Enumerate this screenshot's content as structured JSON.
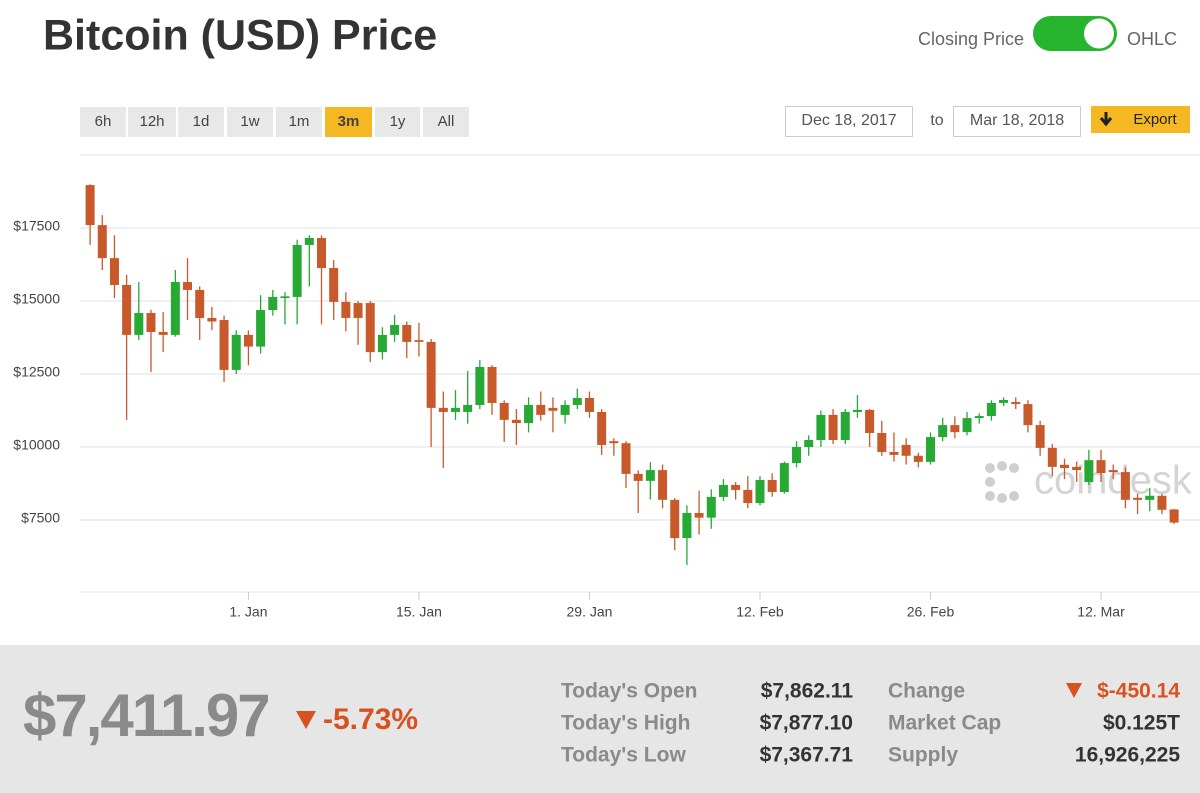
{
  "header": {
    "title": "Bitcoin (USD) Price",
    "toggle_left": "Closing Price",
    "toggle_right": "OHLC"
  },
  "controls": {
    "ranges": [
      "6h",
      "12h",
      "1d",
      "1w",
      "1m",
      "3m",
      "1y",
      "All"
    ],
    "selected_range": 5,
    "date_from": "Dec 18, 2017",
    "to": "to",
    "date_to": "Mar 18, 2018",
    "export": "Export"
  },
  "chart_data": {
    "type": "candlestick",
    "categories": [
      null,
      null,
      null,
      null,
      null,
      null,
      null,
      null,
      null,
      null,
      null,
      null,
      null,
      "1. Jan",
      null,
      null,
      null,
      null,
      null,
      null,
      null,
      null,
      null,
      null,
      null,
      null,
      null,
      "15. Jan",
      null,
      null,
      null,
      null,
      null,
      null,
      null,
      null,
      null,
      null,
      null,
      null,
      null,
      "29. Jan",
      null,
      null,
      null,
      null,
      null,
      null,
      null,
      null,
      null,
      null,
      null,
      null,
      null,
      "12. Feb",
      null,
      null,
      null,
      null,
      null,
      null,
      null,
      null,
      null,
      null,
      null,
      null,
      null,
      "26. Feb",
      null,
      null,
      null,
      null,
      null,
      null,
      null,
      null,
      null,
      null,
      null,
      null,
      null,
      "12. Mar",
      null,
      null,
      null,
      null,
      null,
      null
    ],
    "open": [
      18970,
      17600,
      16470,
      15550,
      13840,
      14590,
      13940,
      13840,
      15650,
      15380,
      14420,
      14350,
      12640,
      13840,
      13440,
      14690,
      15100,
      15140,
      16920,
      17160,
      16130,
      14970,
      14930,
      14930,
      13250,
      13840,
      14180,
      13660,
      13600,
      11340,
      11200,
      11200,
      11440,
      12740,
      11510,
      10930,
      10820,
      11440,
      11340,
      11100,
      11440,
      11680,
      11200,
      10200,
      10130,
      9080,
      8840,
      9210,
      8190,
      6880,
      7740,
      7580,
      8290,
      8700,
      8530,
      8080,
      8870,
      8460,
      9450,
      10000,
      10240,
      11100,
      10240,
      11200,
      11270,
      10480,
      9830,
      10070,
      9700,
      9490,
      10340,
      10750,
      10510,
      10990,
      11060,
      11510,
      11540,
      11470,
      10750,
      9970,
      9390,
      9320,
      8800,
      9550,
      9210,
      9140,
      8260,
      8190,
      8330,
      7862.11
    ],
    "high": [
      19000,
      17940,
      17250,
      15900,
      15650,
      14700,
      14620,
      16060,
      16470,
      15500,
      14800,
      14500,
      14000,
      14000,
      15200,
      15380,
      15300,
      17100,
      17250,
      17250,
      16400,
      15300,
      15000,
      15000,
      14100,
      14520,
      14300,
      14250,
      13700,
      11900,
      11950,
      12600,
      12980,
      12800,
      11600,
      11300,
      11700,
      11900,
      11700,
      11600,
      12000,
      11900,
      11300,
      10300,
      10200,
      9200,
      9480,
      9400,
      8250,
      8000,
      8500,
      8550,
      8900,
      8800,
      9000,
      9000,
      9100,
      9500,
      10200,
      10400,
      11250,
      11300,
      11300,
      11780,
      11300,
      10900,
      10500,
      10300,
      9800,
      10500,
      11000,
      11050,
      11200,
      11150,
      11600,
      11700,
      11700,
      11600,
      10900,
      10100,
      9600,
      9500,
      9900,
      9900,
      9400,
      9300,
      8400,
      8600,
      8400,
      7877.1
    ],
    "low": [
      16920,
      16060,
      15100,
      10930,
      13660,
      12570,
      13250,
      13780,
      14350,
      13660,
      14000,
      12230,
      12500,
      12800,
      13200,
      14500,
      14200,
      14200,
      15500,
      14200,
      14350,
      13960,
      13500,
      12910,
      13000,
      13600,
      13050,
      13100,
      10000,
      9280,
      10930,
      10800,
      11300,
      11100,
      10170,
      10070,
      10500,
      10900,
      10500,
      10800,
      11300,
      11000,
      9730,
      9700,
      8600,
      7740,
      8200,
      7900,
      6470,
      5960,
      7000,
      7200,
      8150,
      8200,
      7900,
      8000,
      8300,
      8400,
      9300,
      9700,
      10000,
      10100,
      10100,
      11000,
      10000,
      9700,
      9500,
      9400,
      9300,
      9400,
      10200,
      10300,
      10400,
      10800,
      10900,
      11400,
      11300,
      10500,
      9700,
      9000,
      8900,
      8800,
      8700,
      8800,
      8900,
      7900,
      7700,
      7800,
      7700,
      7367.71
    ],
    "close": [
      17600,
      16470,
      15550,
      13840,
      14590,
      13940,
      13840,
      15650,
      15380,
      14420,
      14300,
      12640,
      13840,
      13440,
      14690,
      15140,
      15160,
      16920,
      17160,
      16130,
      14970,
      14420,
      14420,
      13250,
      13840,
      14180,
      13600,
      13600,
      11340,
      11200,
      11340,
      11440,
      12740,
      11510,
      10930,
      10820,
      11440,
      11100,
      11240,
      11440,
      11680,
      11200,
      10070,
      10130,
      9080,
      8840,
      9210,
      8190,
      6880,
      7740,
      7580,
      8290,
      8700,
      8530,
      8080,
      8870,
      8460,
      9450,
      10000,
      10240,
      11100,
      10240,
      11200,
      11270,
      10480,
      9830,
      9730,
      9700,
      9490,
      10340,
      10750,
      10510,
      10990,
      11060,
      11510,
      11610,
      11470,
      10750,
      9970,
      9320,
      9280,
      9210,
      9550,
      9110,
      9140,
      8190,
      8190,
      8330,
      7850,
      7411.97
    ],
    "up_color": "#27a935",
    "down_color": "#c8592a",
    "ylim": [
      5034,
      20001
    ],
    "yticks": [
      {
        "value": 7500,
        "label": "$7500"
      },
      {
        "value": 10000,
        "label": "$10000"
      },
      {
        "value": 12500,
        "label": "$12500"
      },
      {
        "value": 15000,
        "label": "$15000"
      },
      {
        "value": 17500,
        "label": "$17500"
      }
    ],
    "grid": true,
    "watermark": "coindesk"
  },
  "summary": {
    "price": "$7,411.97",
    "change_pct": "-5.73%",
    "stats": [
      {
        "label": "Today's Open",
        "value": "$7,862.11"
      },
      {
        "label": "Today's High",
        "value": "$7,877.10"
      },
      {
        "label": "Today's Low",
        "value": "$7,367.71"
      }
    ],
    "info": [
      {
        "label": "Change",
        "value": "$-450.14"
      },
      {
        "label": "Market Cap",
        "value": "$0.125T"
      },
      {
        "label": "Supply",
        "value": "16,926,225"
      }
    ]
  }
}
